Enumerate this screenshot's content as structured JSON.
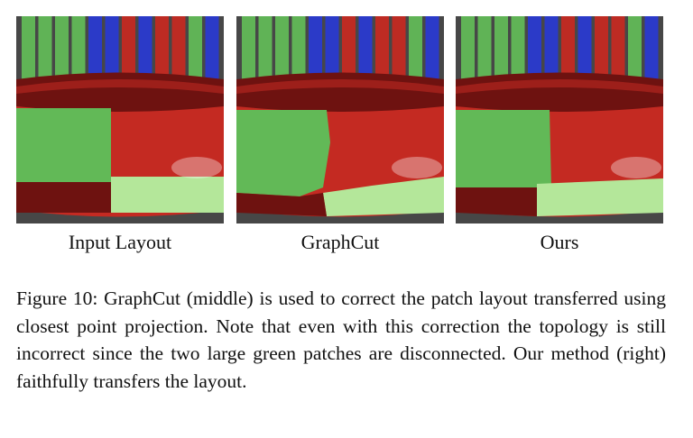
{
  "figure": {
    "panels": [
      {
        "label": "Input Layout",
        "variant": "input"
      },
      {
        "label": "GraphCut",
        "variant": "graphcut"
      },
      {
        "label": "Ours",
        "variant": "ours"
      }
    ],
    "caption": "Figure 10: GraphCut (middle) is used to correct the patch layout transferred using closest point projection. Note that even with this correction the topology is still incorrect since the two large green patches are disconnected. Our method (right) faithfully transfers the layout."
  },
  "colors": {
    "background": "#474747",
    "red": "#c42a22",
    "dark_red": "#6e1210",
    "green": "#62b957",
    "light_green": "#b4e79a",
    "blue": "#2a3ad0"
  }
}
